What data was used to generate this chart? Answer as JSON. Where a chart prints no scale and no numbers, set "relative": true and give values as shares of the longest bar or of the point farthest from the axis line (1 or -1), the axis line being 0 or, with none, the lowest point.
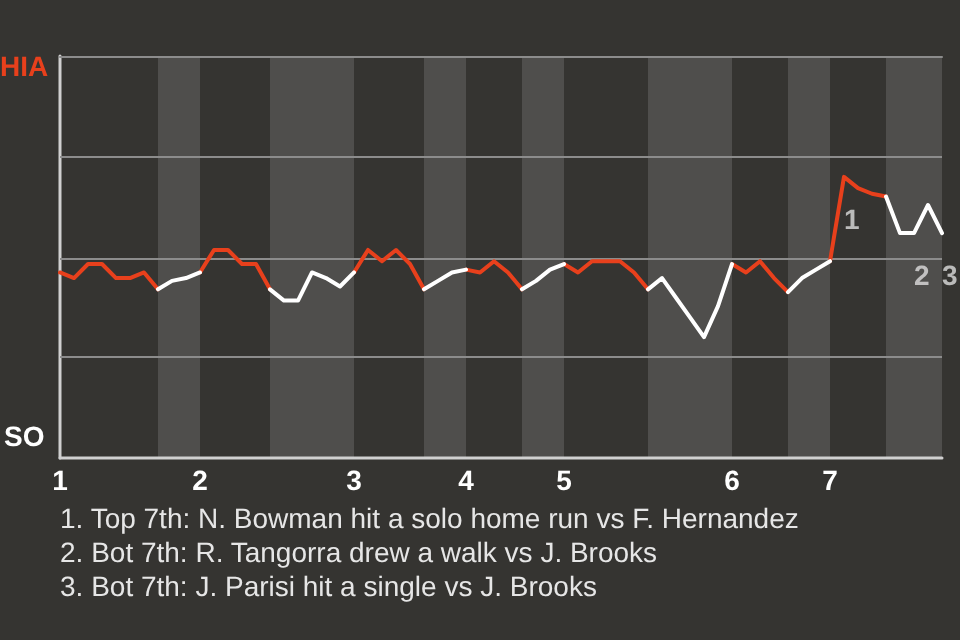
{
  "chart_data": {
    "type": "line",
    "categories": [
      "1",
      null,
      null,
      null,
      null,
      null,
      null,
      null,
      null,
      null,
      "2",
      null,
      null,
      null,
      null,
      null,
      null,
      null,
      null,
      null,
      null,
      "3",
      null,
      null,
      null,
      null,
      null,
      null,
      null,
      "4",
      null,
      null,
      null,
      null,
      null,
      null,
      "5",
      null,
      null,
      null,
      null,
      null,
      null,
      null,
      null,
      null,
      null,
      null,
      "6",
      null,
      null,
      null,
      null,
      null,
      null,
      "7",
      null,
      null,
      null,
      null,
      null,
      null,
      null,
      null
    ],
    "relative": true,
    "series": [
      {
        "color": "#e8401c",
        "values": [
          0.66,
          0.64,
          0.69,
          0.69,
          0.64,
          0.64,
          0.66,
          0.6,
          null,
          null,
          0.66,
          0.74,
          0.74,
          0.69,
          0.69,
          0.6,
          null,
          null,
          null,
          null,
          null,
          0.66,
          0.74,
          0.7,
          0.74,
          0.69,
          0.6,
          null,
          null,
          0.67,
          0.66,
          0.7,
          0.66,
          0.6,
          null,
          null,
          0.69,
          0.66,
          0.7,
          0.7,
          0.7,
          0.66,
          0.6,
          null,
          null,
          null,
          null,
          null,
          0.69,
          0.66,
          0.7,
          0.64,
          0.59,
          null,
          null,
          0.7,
          1.0,
          0.96,
          0.94,
          0.93,
          null,
          null,
          null,
          null
        ]
      },
      {
        "color": "#ffffff",
        "values": [
          null,
          null,
          null,
          null,
          null,
          null,
          null,
          0.6,
          0.63,
          0.64,
          0.66,
          null,
          null,
          null,
          null,
          0.6,
          0.56,
          0.56,
          0.66,
          0.64,
          0.61,
          0.66,
          null,
          null,
          null,
          null,
          0.6,
          0.63,
          0.66,
          0.67,
          null,
          null,
          null,
          0.6,
          0.63,
          0.67,
          0.69,
          null,
          null,
          null,
          null,
          null,
          0.6,
          0.64,
          0.57,
          0.5,
          0.43,
          0.54,
          0.69,
          null,
          null,
          null,
          0.59,
          0.64,
          0.67,
          0.7,
          null,
          null,
          null,
          0.93,
          0.8,
          0.8,
          0.9,
          0.8
        ]
      }
    ],
    "marker": "none",
    "ref_lines": [
      {
        "axis": "y",
        "value": 0.36,
        "label": null,
        "color": "#8c8c8c",
        "line_style": "solid"
      },
      {
        "axis": "y",
        "value": 0.71,
        "label": null,
        "color": "#8c8c8c",
        "line_style": "solid"
      },
      {
        "axis": "y",
        "value": 1.07,
        "label": null,
        "color": "#8c8c8c",
        "line_style": "solid"
      }
    ],
    "annotations": [
      "HIA",
      "SO",
      {
        "text": "1",
        "y": 1.0
      },
      {
        "text": "2",
        "y": 0.8
      },
      {
        "text": "3",
        "y": 0.8
      },
      "1. Top 7th: N. Bowman hit a solo home run vs F. Hernandez",
      "2. Bot 7th: R. Tangorra drew a walk vs J. Brooks",
      "3. Bot 7th: J. Parisi hit a single vs J. Brooks"
    ]
  }
}
